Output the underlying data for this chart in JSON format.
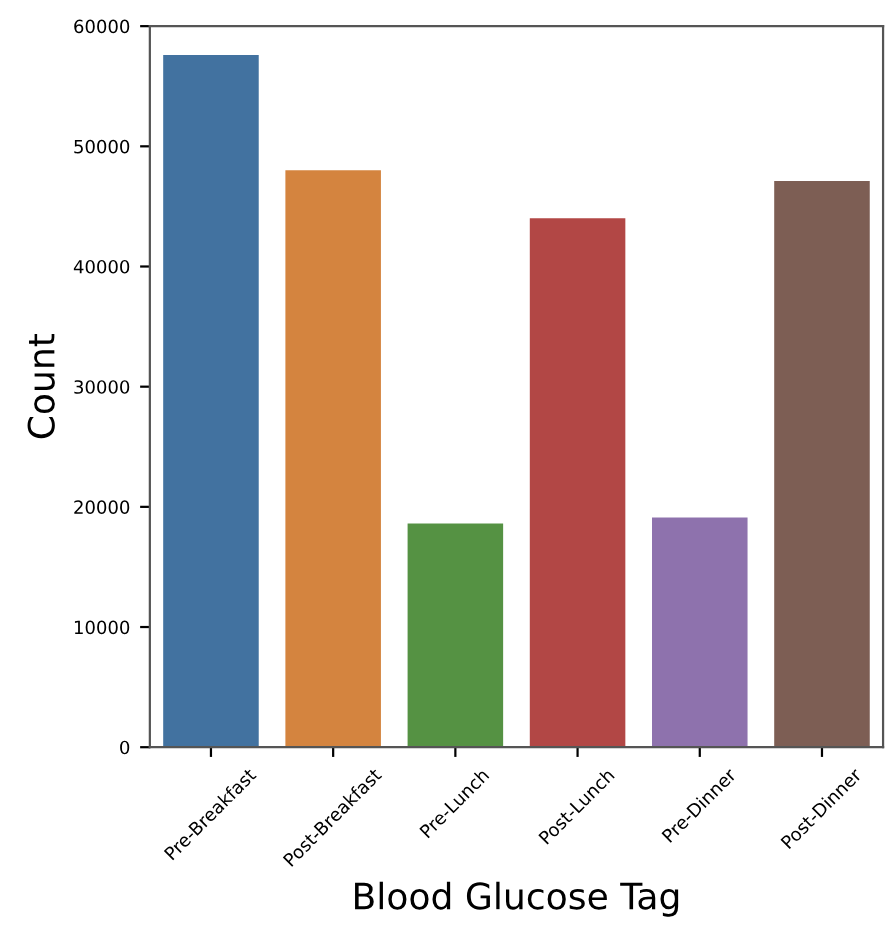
{
  "chart_data": {
    "type": "bar",
    "xlabel": "Blood Glucose Tag",
    "ylabel": "Count",
    "categories": [
      "Pre-Breakfast",
      "Post-Breakfast",
      "Pre-Lunch",
      "Post-Lunch",
      "Pre-Dinner",
      "Post-Dinner"
    ],
    "values": [
      57700,
      48100,
      18700,
      44100,
      19200,
      47200
    ],
    "colors": [
      "#4272a0",
      "#d4843f",
      "#559243",
      "#b24745",
      "#8e72ad",
      "#7d5e54"
    ],
    "ylim": [
      0,
      60000
    ],
    "yticks": [
      0,
      10000,
      20000,
      30000,
      40000,
      50000,
      60000
    ],
    "grid": false
  }
}
